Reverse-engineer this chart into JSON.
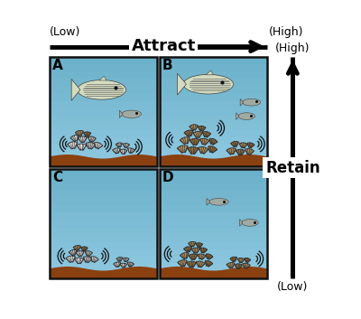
{
  "attract_label": "Attract",
  "retain_label": "Retain",
  "low_label": "(Low)",
  "high_label": "(High)",
  "panel_labels": [
    "A",
    "B",
    "C",
    "D"
  ],
  "bg_color": "#ffffff",
  "water_top": "#8ec8e0",
  "water_bot": "#6aafc8",
  "sand_col": "#8B4010",
  "oyster_white": "#dcdcdc",
  "oyster_white2": "#c8c8c8",
  "oyster_tan": "#b09060",
  "oyster_tan2": "#907040",
  "oyster_outline": "#2a2a2a",
  "fish_stripe": "#d0d8b0",
  "fish_small": "#a8b8a0",
  "arrow_lw": 3,
  "panel_lw": 1.5
}
